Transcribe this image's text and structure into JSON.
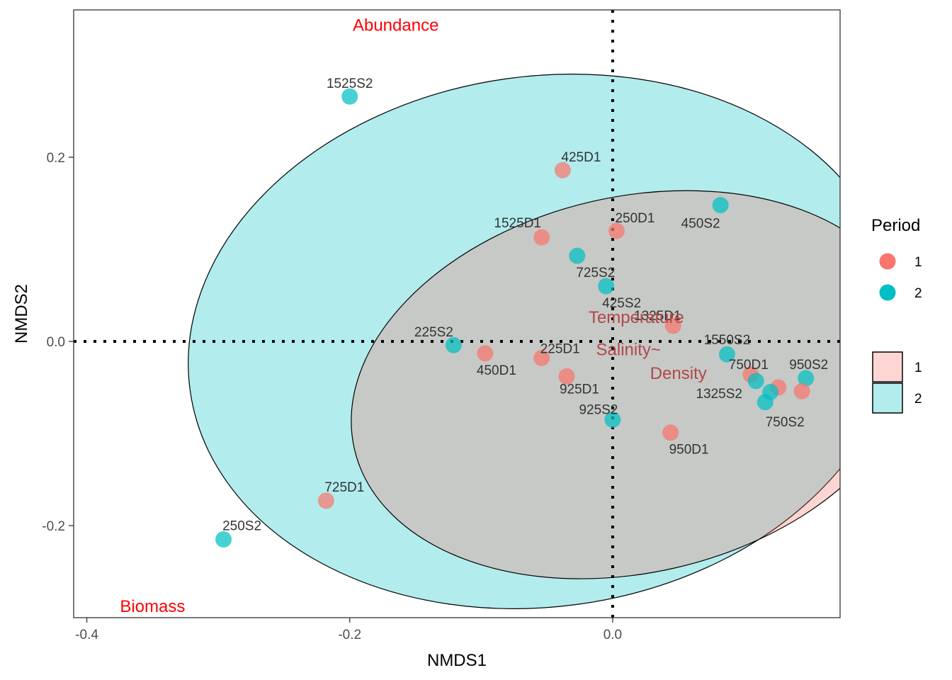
{
  "chart_data": {
    "type": "scatter",
    "title": "",
    "xlabel": "NMDS1",
    "ylabel": "NMDS2",
    "xlim": [
      -0.41,
      0.173
    ],
    "ylim": [
      -0.3,
      0.36
    ],
    "x_ticks": [
      -0.4,
      -0.2,
      0.0
    ],
    "y_ticks": [
      -0.2,
      0.0,
      0.2
    ],
    "x_tick_labels": [
      "-0.4",
      "-0.2",
      "0.0"
    ],
    "y_tick_labels": [
      "-0.2",
      "0.0",
      "0.2"
    ],
    "grid": false,
    "reference_lines": {
      "x": 0,
      "y": 0,
      "style": "dotted"
    },
    "groups": [
      {
        "name": "1",
        "color": "#F8766D"
      },
      {
        "name": "2",
        "color": "#00BFC4"
      }
    ],
    "points": [
      {
        "label": "1525S2",
        "group": "2",
        "x": -0.2,
        "y": 0.266
      },
      {
        "label": "425D1",
        "group": "1",
        "x": -0.038,
        "y": 0.186
      },
      {
        "label": "450S2",
        "group": "2",
        "x": 0.082,
        "y": 0.148
      },
      {
        "label": "1525D1",
        "group": "1",
        "x": -0.054,
        "y": 0.113
      },
      {
        "label": "250D1",
        "group": "1",
        "x": 0.003,
        "y": 0.12
      },
      {
        "label": "725S2",
        "group": "2",
        "x": -0.027,
        "y": 0.093
      },
      {
        "label": "425S2",
        "group": "2",
        "x": -0.005,
        "y": 0.06
      },
      {
        "label": "1325D1",
        "group": "1",
        "x": 0.046,
        "y": 0.017
      },
      {
        "label": "225S2",
        "group": "2",
        "x": -0.121,
        "y": -0.004
      },
      {
        "label": "450D1",
        "group": "1",
        "x": -0.097,
        "y": -0.013
      },
      {
        "label": "225D1",
        "group": "1",
        "x": -0.054,
        "y": -0.018
      },
      {
        "label": "925D1",
        "group": "1",
        "x": -0.035,
        "y": -0.038
      },
      {
        "label": "1550S2",
        "group": "2",
        "x": 0.087,
        "y": -0.014
      },
      {
        "label": "750D1",
        "group": "1",
        "x": 0.105,
        "y": -0.036
      },
      {
        "label": "1325S2",
        "group": "2",
        "x": 0.109,
        "y": -0.043
      },
      {
        "label": "950S2",
        "group": "2",
        "x": 0.147,
        "y": -0.04
      },
      {
        "label": "750S2",
        "group": "2",
        "x": 0.116,
        "y": -0.066
      },
      {
        "label": "925S2",
        "group": "2",
        "x": 0.0,
        "y": -0.085
      },
      {
        "label": "950D1",
        "group": "1",
        "x": 0.044,
        "y": -0.099
      },
      {
        "label": "725D1",
        "group": "1",
        "x": -0.218,
        "y": -0.173
      },
      {
        "label": "250S2",
        "group": "2",
        "x": -0.296,
        "y": -0.215
      },
      {
        "label": "",
        "group": "1",
        "x": 0.126,
        "y": -0.05
      },
      {
        "label": "",
        "group": "1",
        "x": 0.144,
        "y": -0.054
      },
      {
        "label": "",
        "group": "2",
        "x": 0.12,
        "y": -0.055
      }
    ],
    "point_labels_shown": [
      "1525S2",
      "425D1",
      "450S2",
      "1525D1",
      "250D1",
      "725S2",
      "425S2",
      "1325D1",
      "225S2",
      "450D1",
      "225D1",
      "925D1",
      "1550S2",
      "750D1",
      "1325S2",
      "950S2",
      "750S2",
      "925S2",
      "950D1",
      "725D1",
      "250S2"
    ],
    "ellipses": [
      {
        "group": "1",
        "cx": 0.016,
        "cy": -0.047,
        "rx": 0.218,
        "ry": 0.204,
        "angle": -13
      },
      {
        "group": "2",
        "cx": -0.053,
        "cy": 0.0,
        "rx": 0.271,
        "ry": 0.288,
        "angle": -8
      }
    ],
    "env_vectors": [
      {
        "name": "Temperature",
        "x": 0.018,
        "y": 0.025
      },
      {
        "name": "Salinity~",
        "x": 0.012,
        "y": -0.01
      },
      {
        "name": "Density",
        "x": 0.05,
        "y": -0.036
      }
    ],
    "corner_labels": [
      {
        "name": "Abundance",
        "x": -0.165,
        "y": 0.342
      },
      {
        "name": "Biomass",
        "x": -0.35,
        "y": -0.289
      }
    ],
    "legend": {
      "placement": "right",
      "title": "Period",
      "point_entries": [
        "1",
        "2"
      ],
      "fill_entries": [
        "1",
        "2"
      ]
    }
  }
}
